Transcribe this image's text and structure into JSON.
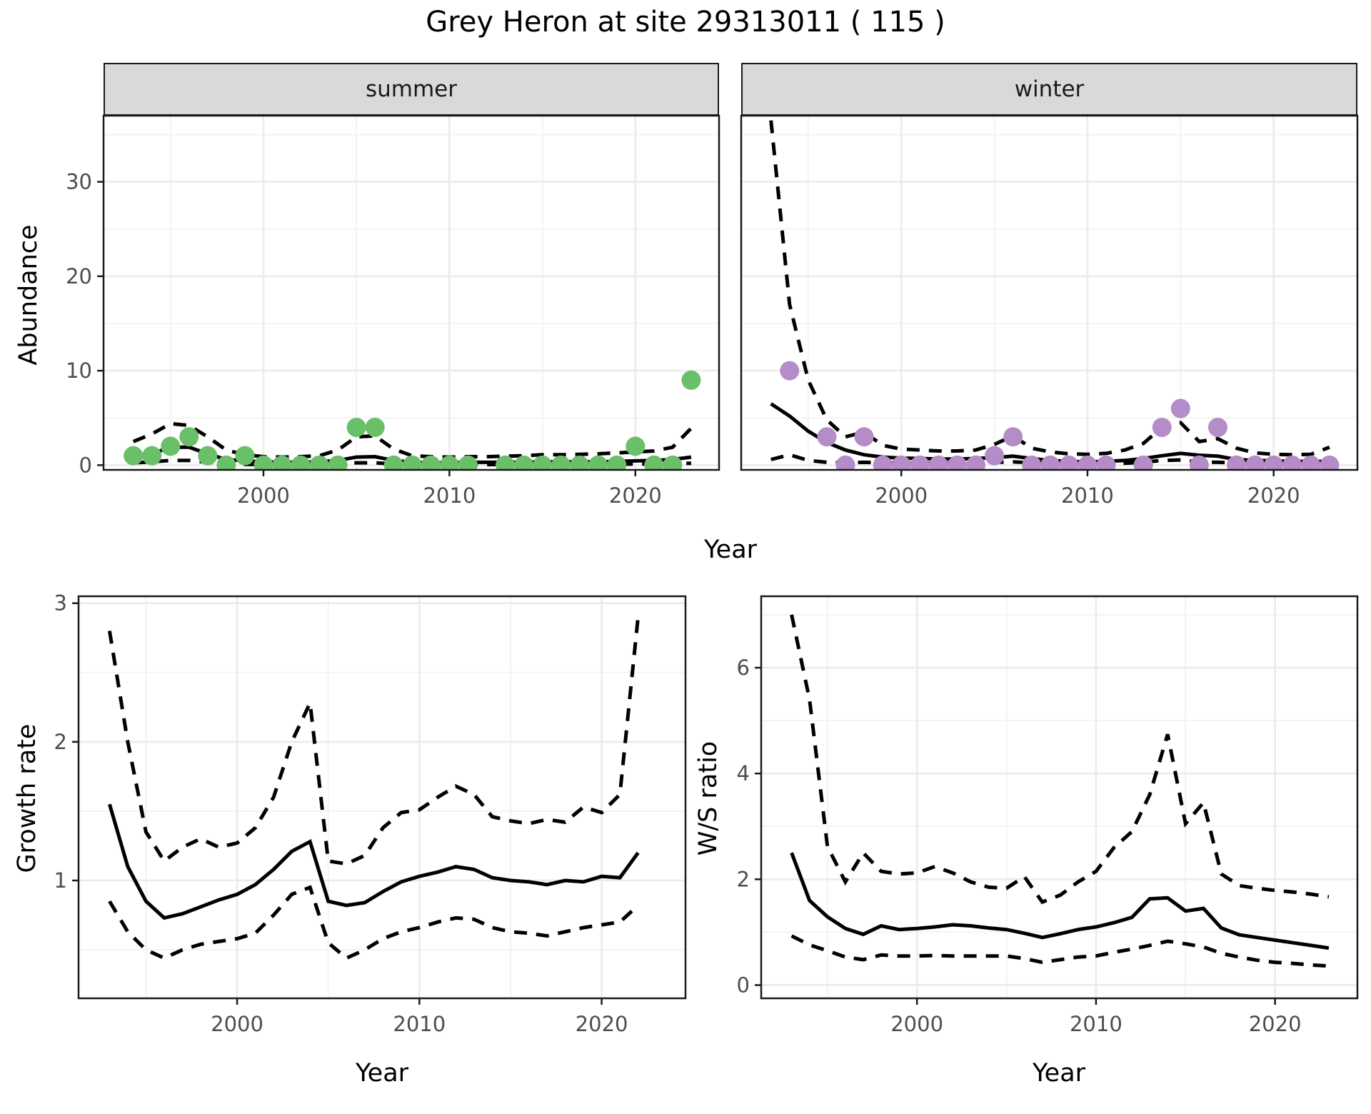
{
  "title": "Grey Heron at site 29313011 ( 115 )",
  "axis_titles": {
    "abundance_y": "Abundance",
    "top_x": "Year",
    "growth_y": "Growth rate",
    "growth_x": "Year",
    "ws_y": "W/S ratio",
    "ws_x": "Year"
  },
  "colors": {
    "summer_point": "#6abf69",
    "winter_point": "#b48cc8",
    "line": "#000000",
    "strip_bg": "#d9d9d9",
    "panel_border": "#1a1a1a",
    "grid_major": "#ebebeb",
    "grid_minor": "#f2f2f2",
    "tick_text": "#4d4d4d"
  },
  "chart_data": [
    {
      "name": "abundance-summer",
      "type": "line+scatter",
      "facet_label": "summer",
      "xlabel": "Year",
      "ylabel": "Abundance",
      "xlim": [
        1991.4,
        2024.5
      ],
      "ylim": [
        -0.5,
        37
      ],
      "x_major": [
        2000,
        2010,
        2020
      ],
      "x_minor": [
        1995,
        2005,
        2015
      ],
      "y_major": [
        0,
        10,
        20,
        30
      ],
      "y_minor": [
        5,
        15,
        25,
        35
      ],
      "x_tick_labels": [
        "2000",
        "2010",
        "2020"
      ],
      "y_tick_labels": [
        "0",
        "10",
        "20",
        "30"
      ],
      "point_color": "#6abf69",
      "points": {
        "x": [
          1993,
          1994,
          1995,
          1996,
          1997,
          1998,
          1999,
          2000,
          2001,
          2002,
          2003,
          2004,
          2005,
          2006,
          2007,
          2008,
          2009,
          2010,
          2011,
          2013,
          2014,
          2015,
          2016,
          2017,
          2018,
          2019,
          2020,
          2021,
          2022,
          2023
        ],
        "y": [
          1,
          1,
          2,
          3,
          1,
          0,
          1,
          0,
          0,
          0,
          0,
          0,
          4,
          4,
          0,
          0,
          0,
          0,
          0,
          0,
          0,
          0,
          0,
          0,
          0,
          0,
          2,
          0,
          0,
          9
        ]
      },
      "lines": {
        "x": [
          1993,
          1994,
          1995,
          1996,
          1997,
          1998,
          1999,
          2000,
          2001,
          2002,
          2003,
          2004,
          2005,
          2006,
          2007,
          2008,
          2009,
          2010,
          2011,
          2012,
          2013,
          2014,
          2015,
          2016,
          2017,
          2018,
          2019,
          2020,
          2021,
          2022,
          2023
        ],
        "mean": [
          1.0,
          1.2,
          1.9,
          1.9,
          1.2,
          0.6,
          0.45,
          0.35,
          0.3,
          0.3,
          0.35,
          0.5,
          0.85,
          0.9,
          0.5,
          0.3,
          0.25,
          0.25,
          0.3,
          0.3,
          0.3,
          0.3,
          0.35,
          0.35,
          0.35,
          0.35,
          0.4,
          0.45,
          0.5,
          0.6,
          0.85
        ],
        "upper": [
          2.5,
          3.3,
          4.4,
          4.2,
          3.0,
          1.6,
          1.1,
          0.9,
          0.85,
          0.9,
          1.0,
          1.6,
          3.0,
          3.1,
          1.7,
          1.0,
          0.9,
          0.85,
          0.9,
          0.9,
          0.95,
          1.0,
          1.1,
          1.1,
          1.15,
          1.2,
          1.3,
          1.4,
          1.5,
          1.9,
          3.9
        ],
        "lower": [
          0.25,
          0.35,
          0.5,
          0.5,
          0.3,
          0.1,
          0.08,
          0.05,
          0.05,
          0.05,
          0.08,
          0.12,
          0.25,
          0.25,
          0.12,
          0.06,
          0.05,
          0.05,
          0.06,
          0.06,
          0.07,
          0.08,
          0.08,
          0.09,
          0.09,
          0.1,
          0.1,
          0.12,
          0.13,
          0.15,
          0.2
        ]
      }
    },
    {
      "name": "abundance-winter",
      "type": "line+scatter",
      "facet_label": "winter",
      "xlabel": "Year",
      "ylabel": "Abundance",
      "xlim": [
        1991.4,
        2024.5
      ],
      "ylim": [
        -0.5,
        37
      ],
      "x_major": [
        2000,
        2010,
        2020
      ],
      "x_minor": [
        1995,
        2005,
        2015
      ],
      "y_major": [
        0,
        10,
        20,
        30
      ],
      "y_minor": [
        5,
        15,
        25,
        35
      ],
      "x_tick_labels": [
        "2000",
        "2010",
        "2020"
      ],
      "y_tick_labels": [],
      "point_color": "#b48cc8",
      "points": {
        "x": [
          1994,
          1996,
          1997,
          1998,
          1999,
          2000,
          2001,
          2002,
          2003,
          2004,
          2005,
          2006,
          2007,
          2008,
          2009,
          2010,
          2011,
          2013,
          2014,
          2015,
          2016,
          2017,
          2018,
          2019,
          2020,
          2021,
          2022,
          2023
        ],
        "y": [
          10,
          3,
          0,
          3,
          0,
          0,
          0,
          0,
          0,
          0,
          1,
          3,
          0,
          0,
          0,
          0,
          0,
          0,
          4,
          6,
          0,
          4,
          0,
          0,
          0,
          0,
          0,
          0
        ]
      },
      "lines": {
        "x": [
          1993,
          1994,
          1995,
          1996,
          1997,
          1998,
          1999,
          2000,
          2001,
          2002,
          2003,
          2004,
          2005,
          2006,
          2007,
          2008,
          2009,
          2010,
          2011,
          2012,
          2013,
          2014,
          2015,
          2016,
          2017,
          2018,
          2019,
          2020,
          2021,
          2022,
          2023
        ],
        "mean": [
          6.5,
          5.2,
          3.6,
          2.4,
          1.6,
          1.1,
          0.85,
          0.75,
          0.7,
          0.65,
          0.65,
          0.7,
          0.8,
          0.95,
          0.7,
          0.5,
          0.4,
          0.35,
          0.4,
          0.5,
          0.7,
          1.0,
          1.25,
          1.05,
          0.95,
          0.6,
          0.5,
          0.45,
          0.4,
          0.4,
          0.4
        ],
        "upper": [
          36.5,
          17,
          9,
          4.8,
          3.0,
          3.5,
          2.1,
          1.7,
          1.6,
          1.5,
          1.5,
          1.6,
          2.2,
          3.1,
          1.8,
          1.4,
          1.2,
          1.15,
          1.25,
          1.6,
          2.3,
          4.0,
          4.5,
          2.5,
          2.8,
          1.8,
          1.3,
          1.15,
          1.1,
          1.15,
          1.9
        ],
        "lower": [
          0.6,
          1.1,
          0.5,
          0.3,
          0.25,
          0.3,
          0.25,
          0.2,
          0.2,
          0.2,
          0.2,
          0.25,
          0.3,
          0.35,
          0.25,
          0.2,
          0.15,
          0.15,
          0.15,
          0.2,
          0.3,
          0.5,
          0.55,
          0.35,
          0.3,
          0.25,
          0.2,
          0.2,
          0.2,
          0.22,
          0.25
        ]
      }
    },
    {
      "name": "growth-rate",
      "type": "line",
      "facet_label": "",
      "xlabel": "Year",
      "ylabel": "Growth rate",
      "xlim": [
        1991.3,
        2024.6
      ],
      "ylim": [
        0.15,
        3.05
      ],
      "x_major": [
        2000,
        2010,
        2020
      ],
      "x_minor": [
        1995,
        2005,
        2015
      ],
      "y_major": [
        1,
        2,
        3
      ],
      "y_minor": [
        0.5,
        1.5,
        2.5
      ],
      "x_tick_labels": [
        "2000",
        "2010",
        "2020"
      ],
      "y_tick_labels": [
        "1",
        "2",
        "3"
      ],
      "lines": {
        "x": [
          1993,
          1994,
          1995,
          1996,
          1997,
          1998,
          1999,
          2000,
          2001,
          2002,
          2003,
          2004,
          2005,
          2006,
          2007,
          2008,
          2009,
          2010,
          2011,
          2012,
          2013,
          2014,
          2015,
          2016,
          2017,
          2018,
          2019,
          2020,
          2021,
          2022
        ],
        "mean": [
          1.55,
          1.1,
          0.85,
          0.73,
          0.76,
          0.81,
          0.86,
          0.9,
          0.97,
          1.08,
          1.21,
          1.28,
          0.85,
          0.82,
          0.84,
          0.92,
          0.99,
          1.03,
          1.06,
          1.1,
          1.08,
          1.02,
          1.0,
          0.99,
          0.97,
          1.0,
          0.99,
          1.03,
          1.02,
          1.2
        ],
        "upper": [
          2.8,
          2.0,
          1.35,
          1.14,
          1.24,
          1.3,
          1.24,
          1.27,
          1.38,
          1.6,
          2.0,
          2.28,
          1.14,
          1.12,
          1.18,
          1.38,
          1.49,
          1.51,
          1.6,
          1.68,
          1.62,
          1.46,
          1.43,
          1.41,
          1.44,
          1.42,
          1.53,
          1.49,
          1.62,
          2.9
        ],
        "lower": [
          0.85,
          0.63,
          0.5,
          0.44,
          0.5,
          0.54,
          0.56,
          0.58,
          0.62,
          0.75,
          0.9,
          0.95,
          0.55,
          0.44,
          0.5,
          0.58,
          0.63,
          0.66,
          0.7,
          0.73,
          0.72,
          0.66,
          0.63,
          0.62,
          0.6,
          0.63,
          0.66,
          0.68,
          0.7,
          0.82
        ]
      }
    },
    {
      "name": "ws-ratio",
      "type": "line",
      "facet_label": "",
      "xlabel": "Year",
      "ylabel": "W/S ratio",
      "xlim": [
        1991.3,
        2024.6
      ],
      "ylim": [
        -0.25,
        7.35
      ],
      "x_major": [
        2000,
        2010,
        2020
      ],
      "x_minor": [
        1995,
        2005,
        2015
      ],
      "y_major": [
        0,
        2,
        4,
        6
      ],
      "y_minor": [
        1,
        3,
        5,
        7
      ],
      "x_tick_labels": [
        "2000",
        "2010",
        "2020"
      ],
      "y_tick_labels": [
        "0",
        "2",
        "4",
        "6"
      ],
      "lines": {
        "x": [
          1993,
          1994,
          1995,
          1996,
          1997,
          1998,
          1999,
          2000,
          2001,
          2002,
          2003,
          2004,
          2005,
          2006,
          2007,
          2008,
          2009,
          2010,
          2011,
          2012,
          2013,
          2014,
          2015,
          2016,
          2017,
          2018,
          2019,
          2020,
          2021,
          2022,
          2023
        ],
        "mean": [
          2.5,
          1.6,
          1.29,
          1.07,
          0.96,
          1.12,
          1.05,
          1.07,
          1.1,
          1.14,
          1.12,
          1.08,
          1.05,
          0.98,
          0.9,
          0.97,
          1.05,
          1.1,
          1.18,
          1.28,
          1.63,
          1.65,
          1.4,
          1.45,
          1.08,
          0.95,
          0.9,
          0.85,
          0.8,
          0.75,
          0.7
        ],
        "upper": [
          7.0,
          5.4,
          2.62,
          1.95,
          2.5,
          2.15,
          2.1,
          2.12,
          2.24,
          2.12,
          1.95,
          1.85,
          1.83,
          2.05,
          1.57,
          1.7,
          1.95,
          2.15,
          2.6,
          2.9,
          3.6,
          4.74,
          3.05,
          3.45,
          2.1,
          1.88,
          1.83,
          1.79,
          1.76,
          1.72,
          1.67
        ],
        "lower": [
          0.93,
          0.76,
          0.65,
          0.53,
          0.48,
          0.57,
          0.55,
          0.55,
          0.56,
          0.55,
          0.55,
          0.55,
          0.55,
          0.5,
          0.43,
          0.48,
          0.53,
          0.55,
          0.62,
          0.68,
          0.75,
          0.83,
          0.78,
          0.72,
          0.6,
          0.53,
          0.47,
          0.43,
          0.41,
          0.38,
          0.36
        ]
      }
    }
  ]
}
